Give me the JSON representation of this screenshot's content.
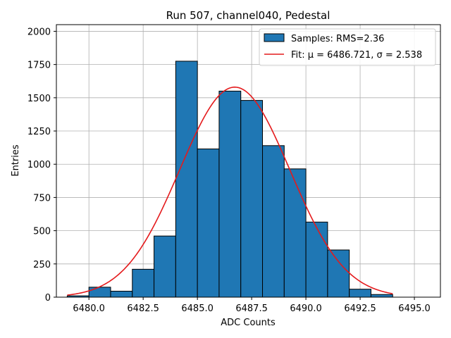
{
  "chart_data": {
    "type": "bar",
    "title": "Run 507, channel040, Pedestal",
    "xlabel": "ADC Counts",
    "ylabel": "Entries",
    "xlim": [
      6478.5,
      6496.2
    ],
    "ylim": [
      0,
      2050
    ],
    "xticks": [
      6480.0,
      6482.5,
      6485.0,
      6487.5,
      6490.0,
      6492.5,
      6495.0
    ],
    "xtick_labels": [
      "6480.0",
      "6482.5",
      "6485.0",
      "6487.5",
      "6490.0",
      "6492.5",
      "6495.0"
    ],
    "yticks": [
      0,
      250,
      500,
      750,
      1000,
      1250,
      1500,
      1750,
      2000
    ],
    "ytick_labels": [
      "0",
      "250",
      "500",
      "750",
      "1000",
      "1250",
      "1500",
      "1750",
      "2000"
    ],
    "grid": true,
    "legend_position": "top-right",
    "histogram": {
      "name": "Samples: RMS=2.36",
      "color": "#1f77b4",
      "edge_color": "#000000",
      "bin_edges": [
        6479,
        6480,
        6481,
        6482,
        6483,
        6484,
        6485,
        6486,
        6487,
        6488,
        6489,
        6490,
        6491,
        6492,
        6493,
        6494
      ],
      "counts": [
        10,
        75,
        45,
        210,
        460,
        1775,
        1115,
        1550,
        1480,
        1140,
        965,
        565,
        355,
        60,
        20
      ]
    },
    "fit": {
      "name": "Fit: μ = 6486.721, σ = 2.538",
      "color": "#e41a1c",
      "mu": 6486.721,
      "sigma": 2.538,
      "amplitude": 1580,
      "x_range": [
        6479,
        6494
      ]
    }
  }
}
